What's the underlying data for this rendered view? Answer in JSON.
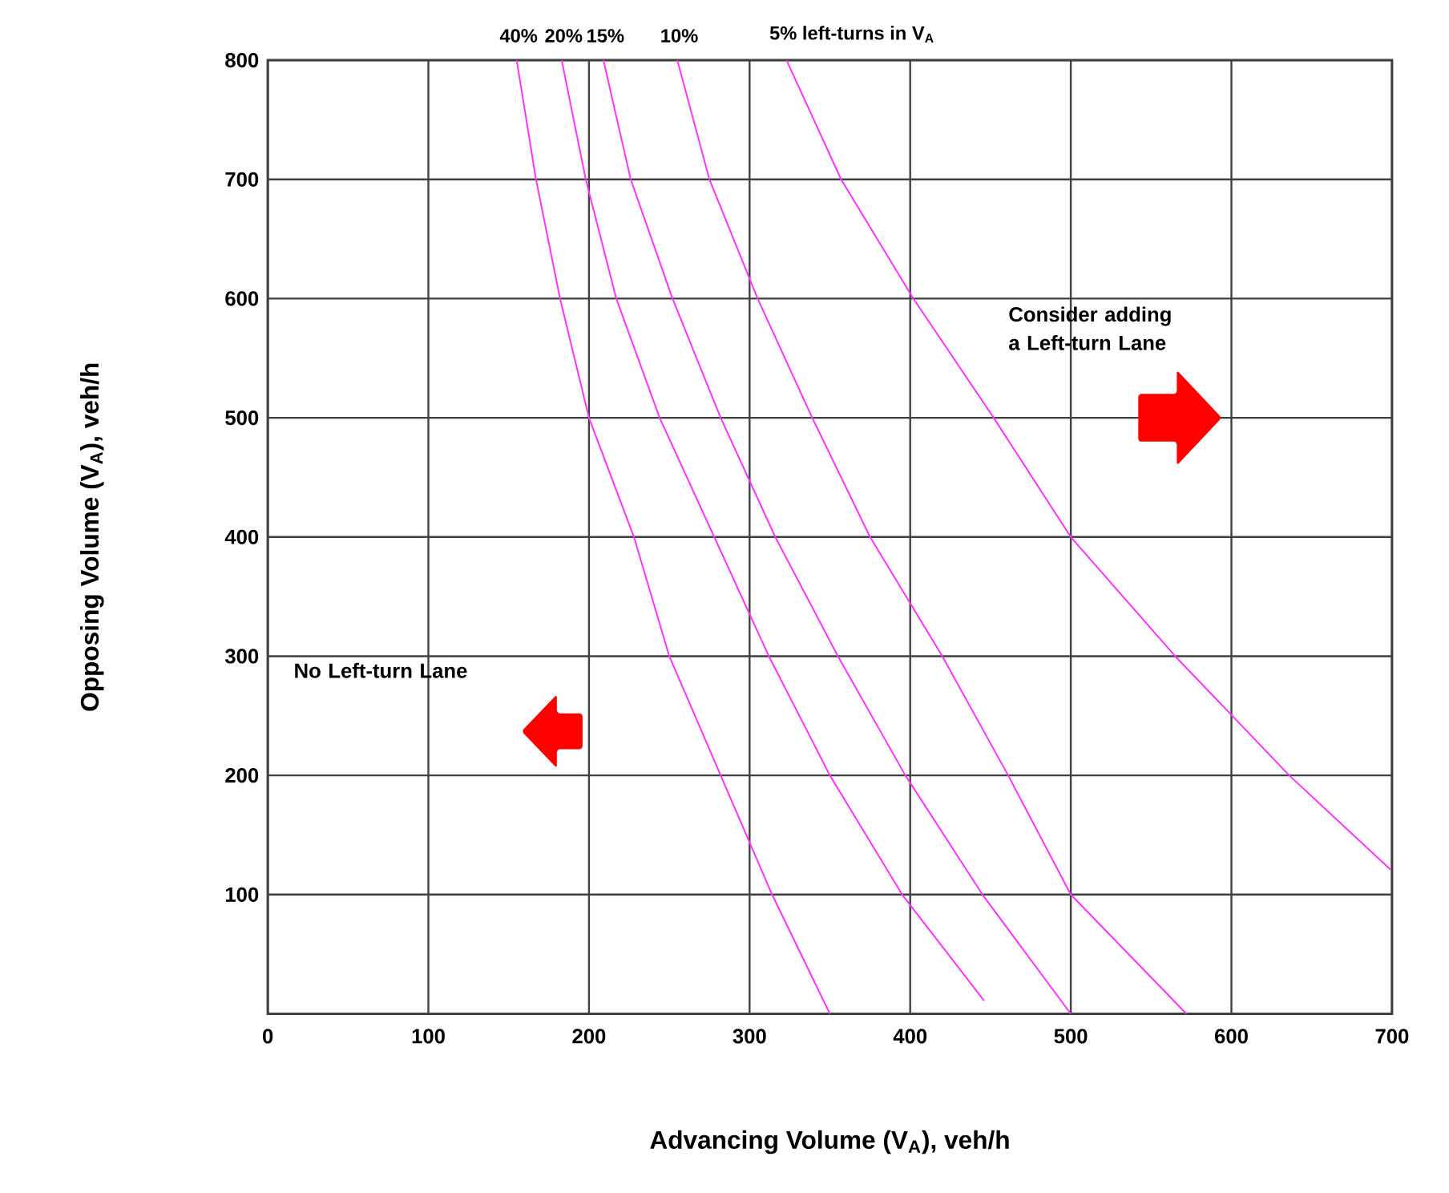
{
  "chart_data": {
    "type": "line",
    "xlabel": "Advancing Volume (V$_{A}$), veh/h",
    "ylabel": "Opposing Volume (V$_{A}$), veh/h",
    "xlim": [
      0,
      700
    ],
    "ylim": [
      0,
      800
    ],
    "xticks": [
      0,
      100,
      200,
      300,
      400,
      500,
      600,
      700
    ],
    "yticks": [
      100,
      200,
      300,
      400,
      500,
      600,
      700,
      800
    ],
    "grid": true,
    "marker": "none",
    "line_style": "solid",
    "series": [
      {
        "name": "40%",
        "color": "#ff33ff",
        "x": [
          155,
          167,
          182,
          200,
          228,
          250,
          282,
          314,
          350
        ],
        "values": [
          800,
          700,
          600,
          500,
          400,
          300,
          200,
          100,
          0
        ]
      },
      {
        "name": "20%",
        "color": "#ff33ff",
        "x": [
          183,
          198,
          217,
          244,
          278,
          312,
          350,
          395,
          446
        ],
        "values": [
          800,
          700,
          600,
          500,
          400,
          300,
          200,
          100,
          11
        ]
      },
      {
        "name": "15%",
        "color": "#ff33ff",
        "x": [
          209,
          226,
          252,
          282,
          316,
          355,
          397,
          445,
          500
        ],
        "values": [
          800,
          700,
          600,
          500,
          400,
          300,
          200,
          100,
          0
        ]
      },
      {
        "name": "10%",
        "color": "#ff33ff",
        "x": [
          255,
          275,
          305,
          339,
          375,
          420,
          461,
          500,
          572
        ],
        "values": [
          800,
          700,
          600,
          500,
          400,
          300,
          200,
          100,
          0
        ]
      },
      {
        "name": "5% left-turns in V$_{A}$",
        "color": "#ff33ff",
        "x": [
          323,
          357,
          402,
          452,
          500,
          565,
          636,
          699
        ],
        "values": [
          800,
          700,
          600,
          500,
          400,
          300,
          200,
          121
        ]
      }
    ],
    "annotations": [
      "No Left-turn Lane",
      "Consider adding a Left-turn Lane"
    ]
  }
}
